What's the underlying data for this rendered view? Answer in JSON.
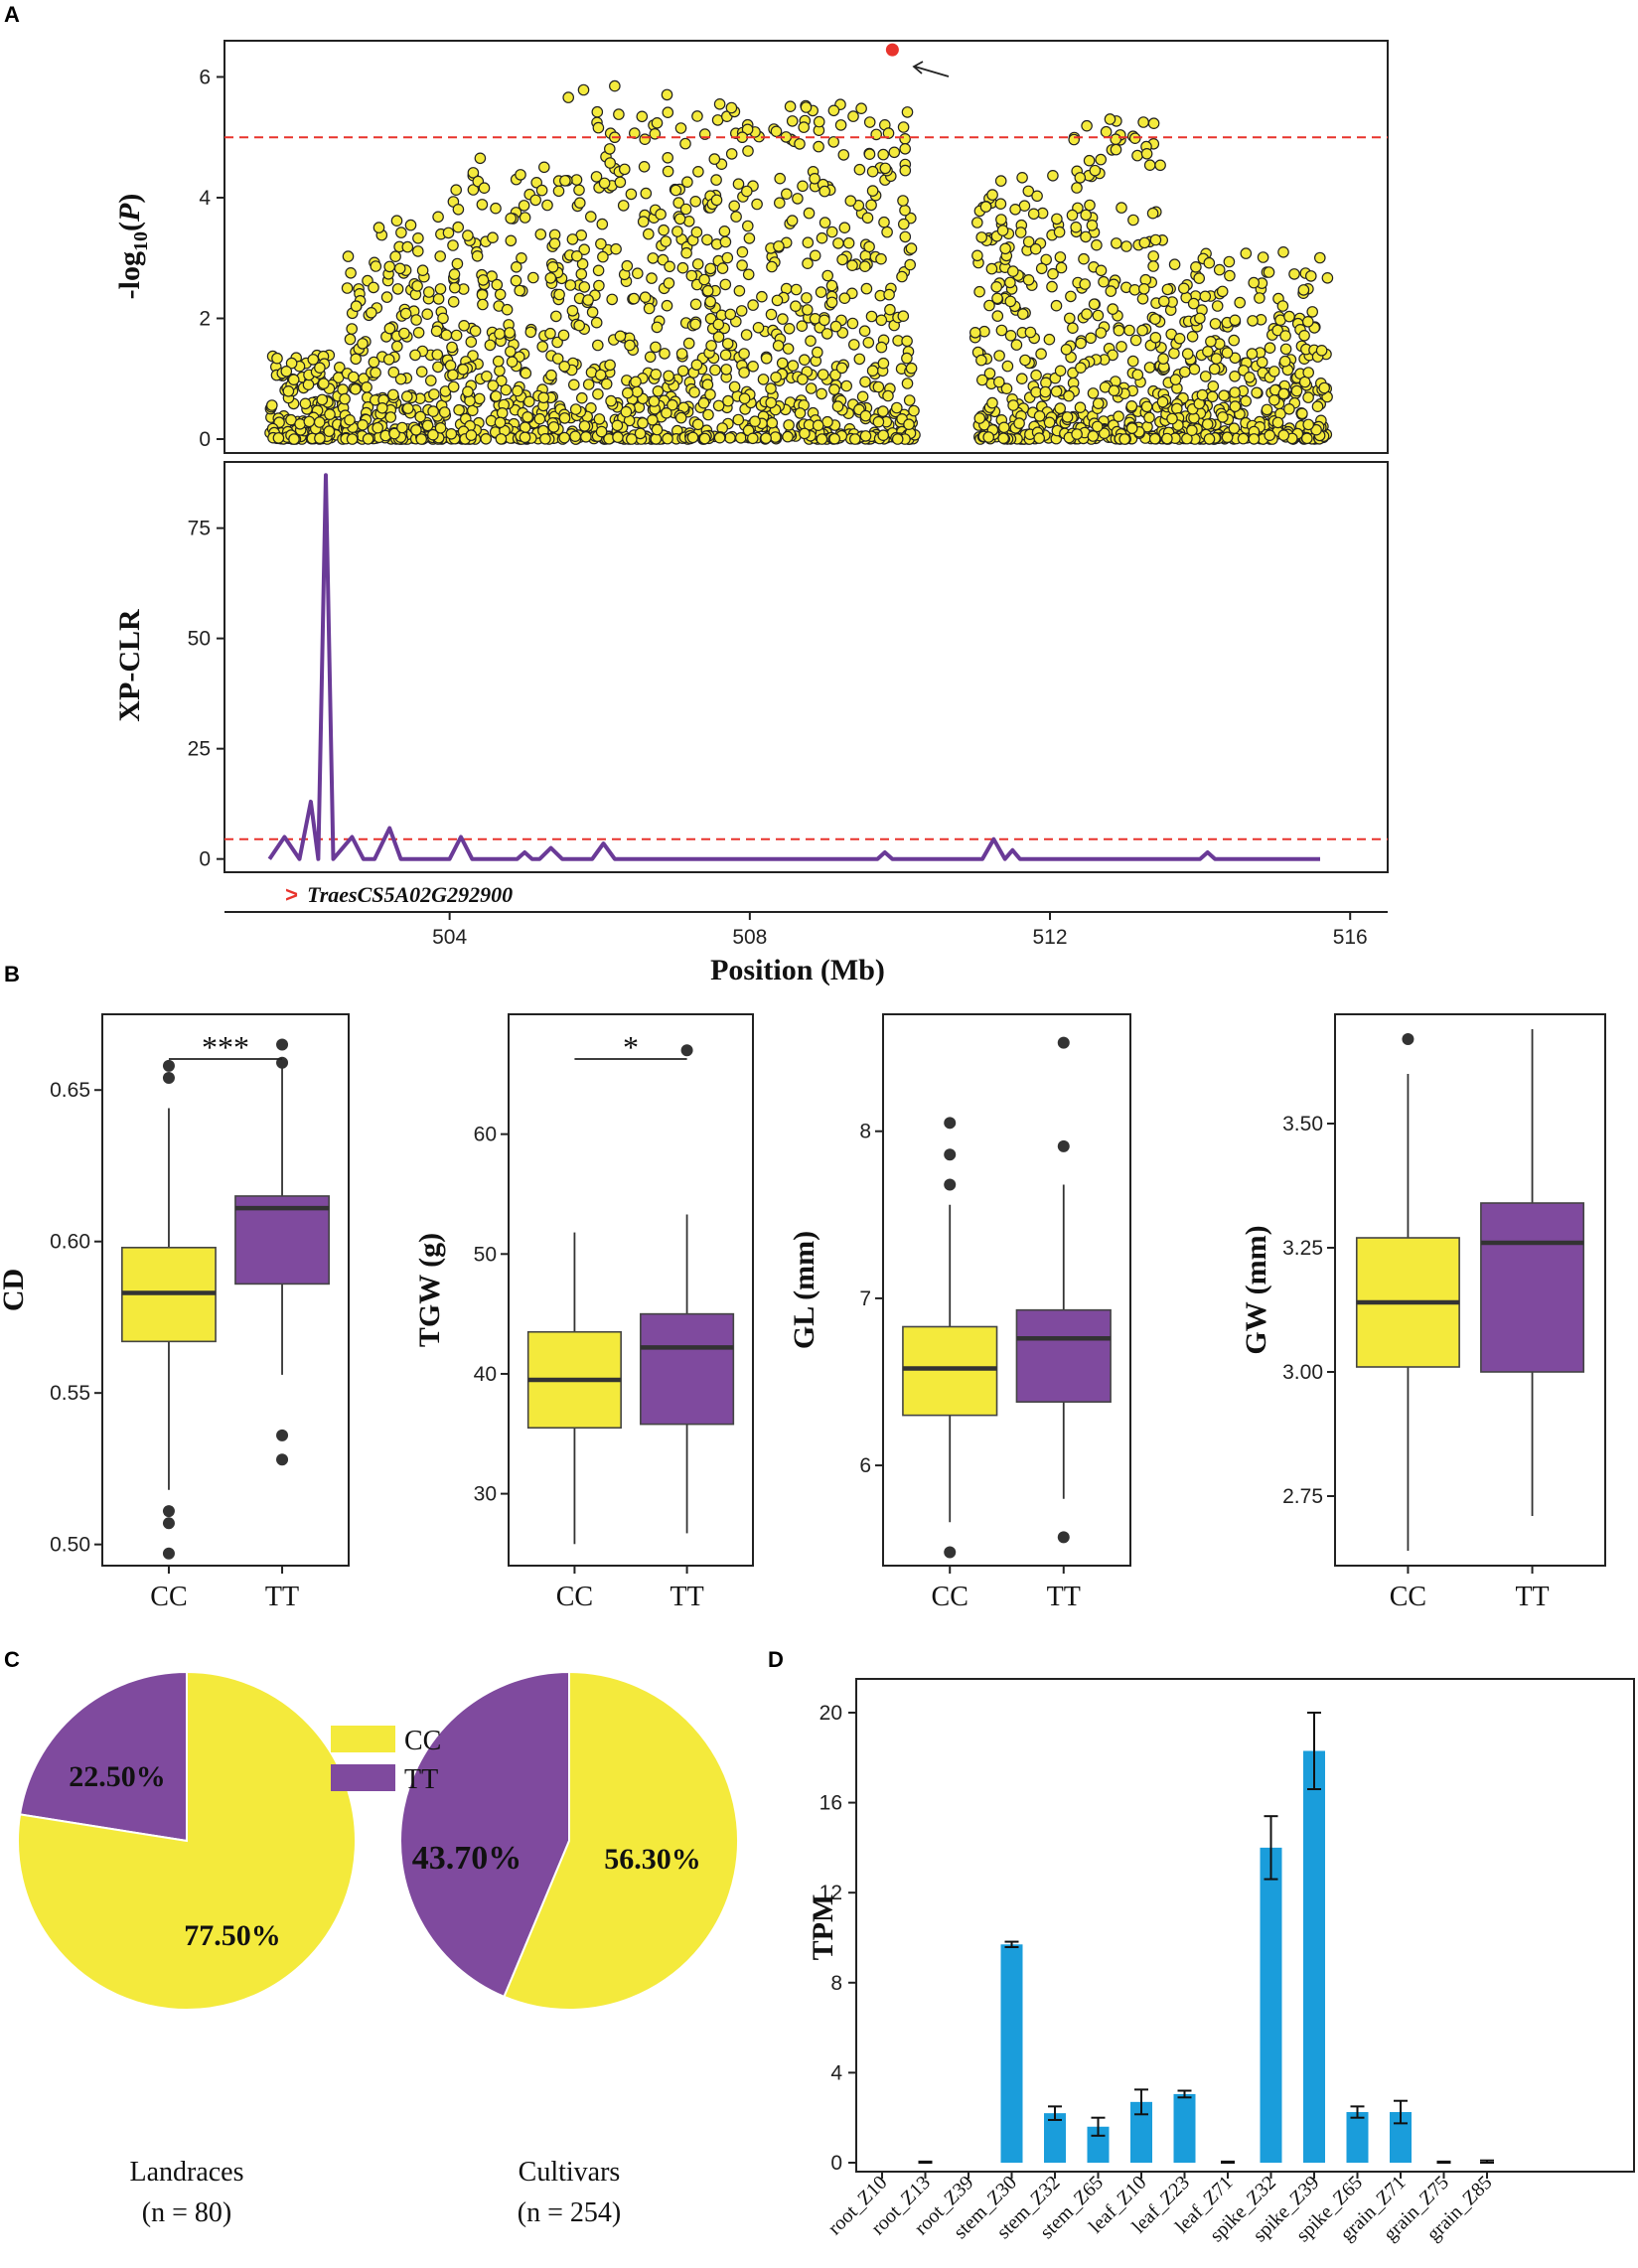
{
  "figure": {
    "panel_labels": [
      "A",
      "B",
      "C",
      "D"
    ],
    "colors": {
      "cc": "#f4ea3c",
      "tt": "#7f4a9e",
      "bar": "#1a9ddb",
      "threshold": "#e8332c",
      "xpclr_line": "#6a3a97",
      "highlight_point": "#e8332c",
      "gene_marker": "#e8332c"
    }
  },
  "chart_data": [
    {
      "id": "A-top",
      "type": "scatter",
      "title": "",
      "ylabel": "-log10(P)",
      "ylabel_parts": {
        "base": "-log",
        "sub": "10",
        "rest": "(",
        "italic": "P",
        "close": ")"
      },
      "ylim": [
        0,
        6.6
      ],
      "yticks": [
        "0",
        "2",
        "4",
        "6"
      ],
      "threshold": 5,
      "xlim": [
        501,
        516.5
      ],
      "highlight": {
        "x": 509.9,
        "y": 6.45,
        "note": "arrow"
      },
      "clusters": [
        {
          "x_start": 501.6,
          "x_end": 502.6,
          "max": 1.4
        },
        {
          "x_start": 502.6,
          "x_end": 504.0,
          "max": 3.7
        },
        {
          "x_start": 504.0,
          "x_end": 505.5,
          "max": 4.7
        },
        {
          "x_start": 505.5,
          "x_end": 507.2,
          "max": 5.85
        },
        {
          "x_start": 507.2,
          "x_end": 510.2,
          "max": 5.55
        },
        {
          "x_start": 511.0,
          "x_end": 512.2,
          "max": 4.4
        },
        {
          "x_start": 512.2,
          "x_end": 513.5,
          "max": 5.3
        },
        {
          "x_start": 513.5,
          "x_end": 515.7,
          "max": 3.1
        }
      ],
      "top_points": [
        {
          "x": 506.2,
          "y": 5.85
        },
        {
          "x": 507.3,
          "y": 5.35
        },
        {
          "x": 507.6,
          "y": 5.55
        },
        {
          "x": 507.9,
          "y": 5.0
        },
        {
          "x": 509.6,
          "y": 5.25
        },
        {
          "x": 512.8,
          "y": 5.3
        },
        {
          "x": 506.2,
          "y": 5.0
        },
        {
          "x": 512.6,
          "y": 4.45
        }
      ]
    },
    {
      "id": "A-bottom",
      "type": "line",
      "ylabel": "XP-CLR",
      "xlabel": "Position (Mb)",
      "ylim": [
        -3,
        90
      ],
      "yticks": [
        "0",
        "25",
        "50",
        "75"
      ],
      "xlim": [
        501,
        516.5
      ],
      "xticks": [
        "504",
        "508",
        "512",
        "516"
      ],
      "threshold": 4.5,
      "x": [
        501.6,
        501.8,
        502.0,
        502.15,
        502.25,
        502.35,
        502.45,
        502.7,
        502.85,
        503.0,
        503.2,
        503.35,
        503.5,
        504.0,
        504.15,
        504.3,
        504.9,
        505.0,
        505.1,
        505.2,
        505.35,
        505.5,
        505.9,
        506.05,
        506.2,
        506.4,
        509.7,
        509.8,
        509.9,
        511.1,
        511.25,
        511.4,
        511.5,
        511.6,
        511.8,
        514.0,
        514.1,
        514.2,
        515.6
      ],
      "y": [
        0,
        5,
        0,
        13,
        0,
        87,
        0,
        5,
        0,
        0,
        7,
        0,
        0,
        0,
        5,
        0,
        0,
        1.5,
        0,
        0,
        2.5,
        0,
        0,
        3.5,
        0,
        0,
        0,
        1.5,
        0,
        0,
        4.5,
        0,
        2,
        0,
        0,
        0,
        1.5,
        0,
        0
      ],
      "gene": {
        "x": 502.1,
        "label": "TraesCS5A02G292900",
        "marker": ">"
      }
    },
    {
      "id": "B-CD",
      "type": "box",
      "ylabel": "CD",
      "categories": [
        "CC",
        "TT"
      ],
      "ylim": [
        0.493,
        0.675
      ],
      "yticks": [
        "0.50",
        "0.55",
        "0.60",
        "0.65"
      ],
      "significance": "***",
      "series": [
        {
          "name": "CC",
          "q1": 0.567,
          "median": 0.583,
          "q3": 0.598,
          "whisker_low": 0.518,
          "whisker_high": 0.644,
          "outliers": [
            0.658,
            0.654,
            0.511,
            0.507,
            0.497
          ]
        },
        {
          "name": "TT",
          "q1": 0.586,
          "median": 0.611,
          "q3": 0.615,
          "whisker_low": 0.556,
          "whisker_high": 0.658,
          "outliers": [
            0.665,
            0.659,
            0.536,
            0.528
          ]
        }
      ]
    },
    {
      "id": "B-TGW",
      "type": "box",
      "ylabel": "TGW (g)",
      "categories": [
        "CC",
        "TT"
      ],
      "ylim": [
        24,
        70
      ],
      "yticks": [
        "30",
        "40",
        "50",
        "60"
      ],
      "significance": "*",
      "series": [
        {
          "name": "CC",
          "q1": 35.5,
          "median": 39.5,
          "q3": 43.5,
          "whisker_low": 25.8,
          "whisker_high": 51.8,
          "outliers": []
        },
        {
          "name": "TT",
          "q1": 35.8,
          "median": 42.2,
          "q3": 45.0,
          "whisker_low": 26.7,
          "whisker_high": 53.3,
          "outliers": [
            67.0
          ]
        }
      ]
    },
    {
      "id": "B-GL",
      "type": "box",
      "ylabel": "GL (mm)",
      "categories": [
        "CC",
        "TT"
      ],
      "ylim": [
        5.4,
        8.7
      ],
      "yticks": [
        "6",
        "7",
        "8"
      ],
      "significance": "",
      "series": [
        {
          "name": "CC",
          "q1": 6.3,
          "median": 6.58,
          "q3": 6.83,
          "whisker_low": 5.66,
          "whisker_high": 7.56,
          "outliers": [
            8.05,
            7.86,
            7.68,
            5.48
          ]
        },
        {
          "name": "TT",
          "q1": 6.38,
          "median": 6.76,
          "q3": 6.93,
          "whisker_low": 5.8,
          "whisker_high": 7.68,
          "outliers": [
            8.53,
            7.91,
            5.57
          ]
        }
      ]
    },
    {
      "id": "B-GW",
      "type": "box",
      "ylabel": "GW (mm)",
      "categories": [
        "CC",
        "TT"
      ],
      "ylim": [
        2.61,
        3.72
      ],
      "yticks": [
        "2.75",
        "3.00",
        "3.25",
        "3.50"
      ],
      "significance": "",
      "series": [
        {
          "name": "CC",
          "q1": 3.01,
          "median": 3.14,
          "q3": 3.27,
          "whisker_low": 2.64,
          "whisker_high": 3.6,
          "outliers": [
            3.67
          ]
        },
        {
          "name": "TT",
          "q1": 3.0,
          "median": 3.26,
          "q3": 3.34,
          "whisker_low": 2.71,
          "whisker_high": 3.69,
          "outliers": []
        }
      ]
    },
    {
      "id": "C-Landraces",
      "type": "pie",
      "title": "Landraces",
      "subtitle": "(n = 80)",
      "legend": [
        "CC",
        "TT"
      ],
      "slices": [
        {
          "name": "TT",
          "value": 22.5,
          "label": "22.50%"
        },
        {
          "name": "CC",
          "value": 77.5,
          "label": "77.50%"
        }
      ]
    },
    {
      "id": "C-Cultivars",
      "type": "pie",
      "title": "Cultivars",
      "subtitle": "(n = 254)",
      "slices": [
        {
          "name": "TT",
          "value": 43.7,
          "label": "43.70%"
        },
        {
          "name": "CC",
          "value": 56.3,
          "label": "56.30%"
        }
      ]
    },
    {
      "id": "D",
      "type": "bar",
      "ylabel": "TPM",
      "ylim": [
        0,
        21.5
      ],
      "yticks": [
        "0",
        "4",
        "8",
        "12",
        "16",
        "20"
      ],
      "categories": [
        "root_Z10",
        "root_Z13",
        "root_Z39",
        "stem_Z30",
        "stem_Z32",
        "stem_Z65",
        "leaf_Z10",
        "leaf_Z23",
        "leaf_Z71",
        "spike_Z32",
        "spike_Z39",
        "spike_Z65",
        "grain_Z71",
        "grain_Z75",
        "grain_Z85"
      ],
      "values": [
        0,
        0,
        0,
        9.7,
        2.2,
        1.6,
        2.7,
        3.05,
        0,
        14.0,
        18.3,
        2.25,
        2.25,
        0,
        0
      ],
      "errors": [
        0,
        0.05,
        0,
        0.12,
        0.3,
        0.4,
        0.55,
        0.15,
        0.05,
        1.4,
        1.7,
        0.25,
        0.5,
        0.05,
        0.1
      ]
    }
  ]
}
